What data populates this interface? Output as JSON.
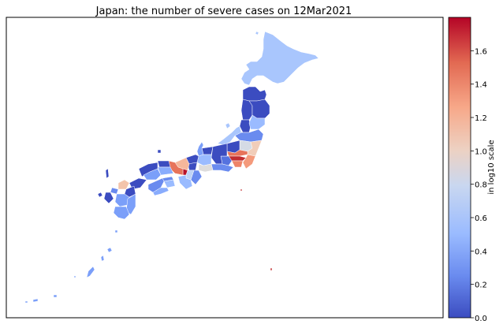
{
  "title": "Japan: the number of severe cases on 12Mar2021",
  "colorbar": {
    "label": "in log10 scale",
    "range": [
      0.0,
      1.8
    ],
    "ticks": [
      "0.0",
      "0.2",
      "0.4",
      "0.6",
      "0.8",
      "1.0",
      "1.2",
      "1.4",
      "1.6"
    ],
    "colormap": "coolwarm",
    "stops": [
      "#3b4cc0",
      "#6a8bef",
      "#9abbff",
      "#c9d7f0",
      "#edd1c2",
      "#f7a889",
      "#e26952",
      "#b40426"
    ]
  },
  "map": {
    "type": "choropleth",
    "region": "Japan prefectures",
    "scale": "log10",
    "prefecture_values": {
      "Hokkaido": 0.6,
      "Aomori": 0.0,
      "Iwate": 0.0,
      "Akita": 0.0,
      "Miyagi": 0.6,
      "Yamagata": 0.0,
      "Fukushima": 0.3,
      "Niigata": 0.6,
      "Tochigi": 0.9,
      "Gunma": 0.0,
      "Ibaraki": 1.05,
      "Saitama": 1.5,
      "Tokyo": 1.7,
      "Chiba": 1.3,
      "Kanagawa": 1.4,
      "Nagano": 0.0,
      "Yamanashi": 0.2,
      "Shizuoka": 0.3,
      "Aichi": 1.0,
      "Gifu": 0.6,
      "Toyama": 0.0,
      "Ishikawa": 0.4,
      "Fukui": 0.0,
      "Shiga": 0.0,
      "Mie": 0.3,
      "Kyoto": 1.2,
      "Osaka": 1.75,
      "Hyogo": 1.5,
      "Nara": 0.8,
      "Wakayama": 0.6,
      "Tottori": 0.0,
      "Shimane": 0.0,
      "Okayama": 0.5,
      "Hiroshima": 0.4,
      "Yamaguchi": 0.0,
      "Kagawa": 0.3,
      "Tokushima": 0.6,
      "Ehime": 0.3,
      "Kochi": 0.5,
      "Fukuoka": 1.1,
      "Saga": 0.3,
      "Nagasaki": 0.0,
      "Kumamoto": 0.4,
      "Oita": 0.0,
      "Miyazaki": 0.4,
      "Kagoshima": 0.4,
      "Okinawa": 0.4
    }
  }
}
